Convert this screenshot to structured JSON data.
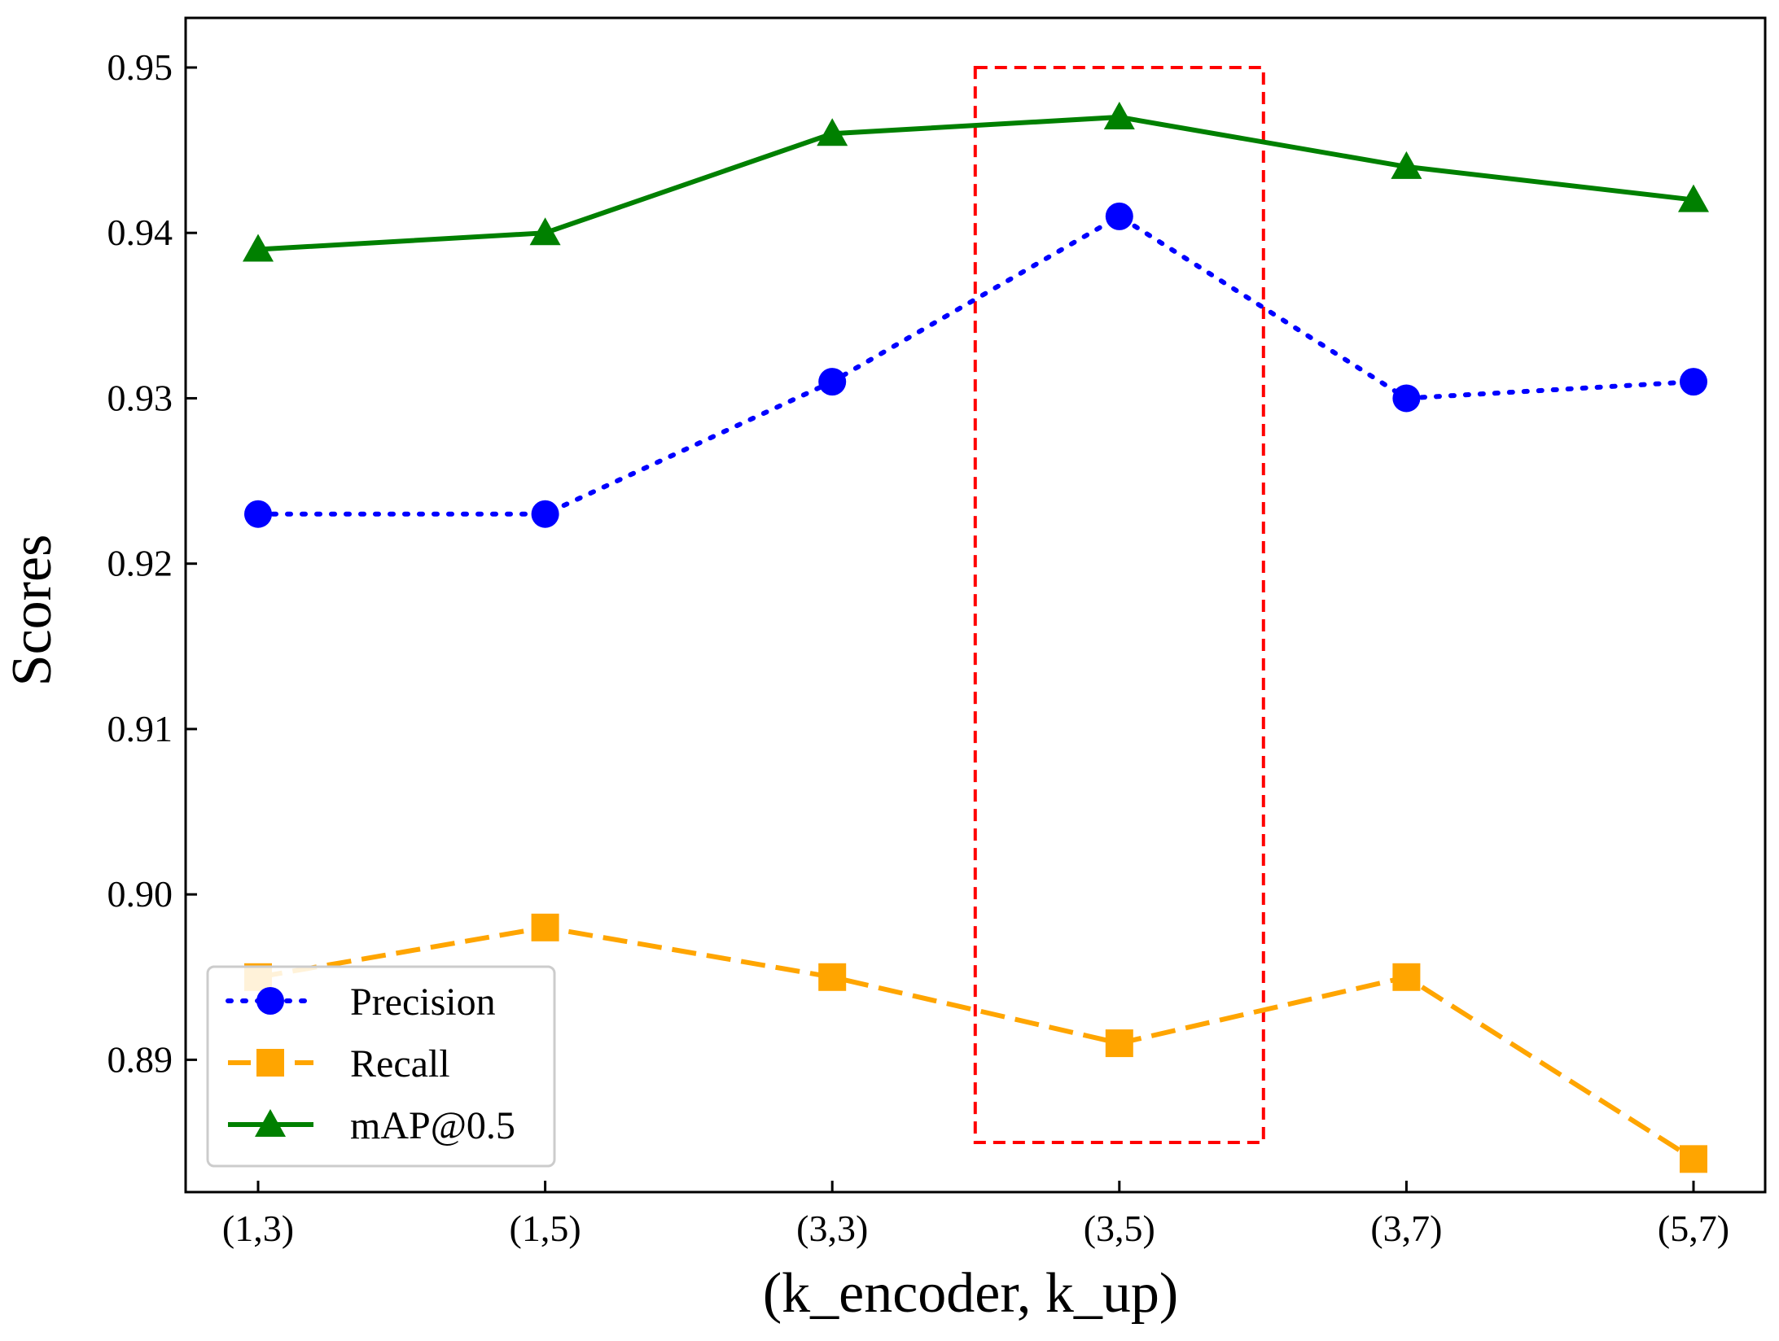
{
  "chart_data": {
    "type": "line",
    "title": "",
    "xlabel": "(k_encoder, k_up)",
    "ylabel": "Scores",
    "categories": [
      "(1,3)",
      "(1,5)",
      "(3,3)",
      "(3,5)",
      "(3,7)",
      "(5,7)"
    ],
    "ylim": [
      0.882,
      0.953
    ],
    "yticks": [
      0.89,
      0.9,
      0.91,
      0.92,
      0.93,
      0.94,
      0.95
    ],
    "ytick_labels": [
      "0.89",
      "0.90",
      "0.91",
      "0.92",
      "0.93",
      "0.94",
      "0.95"
    ],
    "series": [
      {
        "name": "Precision",
        "values": [
          0.923,
          0.923,
          0.931,
          0.941,
          0.93,
          0.931
        ],
        "color": "#0000ff",
        "line_style": "dotted",
        "marker": "circle"
      },
      {
        "name": "Recall",
        "values": [
          0.895,
          0.898,
          0.895,
          0.891,
          0.895,
          0.884
        ],
        "color": "#ffa500",
        "line_style": "dashed",
        "marker": "square"
      },
      {
        "name": "mAP@0.5",
        "values": [
          0.939,
          0.94,
          0.946,
          0.947,
          0.944,
          0.942
        ],
        "color": "#008000",
        "line_style": "solid",
        "marker": "triangle"
      }
    ],
    "highlight": {
      "category": "(3,5)",
      "y_range": [
        0.885,
        0.95
      ],
      "color": "#ff0000",
      "style": "dashed"
    },
    "legend": {
      "position": "lower-left"
    },
    "grid": false
  }
}
